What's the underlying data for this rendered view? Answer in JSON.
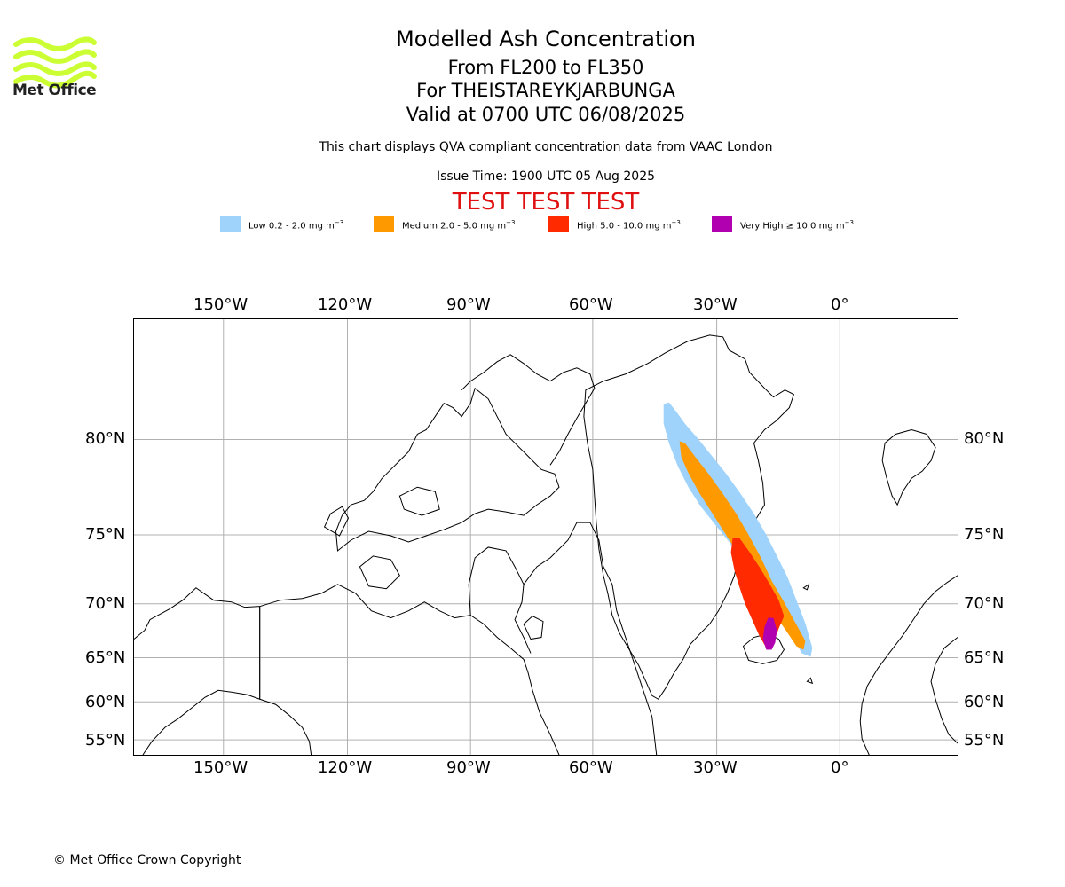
{
  "header": {
    "title": "Modelled Ash Concentration",
    "levels": "From FL200 to FL350",
    "volcano": "For THEISTAREYKJARBUNGA",
    "valid": "Valid at 0700 UTC 06/08/2025",
    "description": "This chart displays QVA compliant concentration data from VAAC London",
    "issue_time": "Issue Time: 1900 UTC 05 Aug 2025",
    "test_banner": "TEST TEST TEST"
  },
  "logo": {
    "text": "Met Office",
    "color": "#ccff33"
  },
  "legend": [
    {
      "label": "Low 0.2 - 2.0 mg m",
      "color": "#9fd3fb"
    },
    {
      "label": "Medium 2.0 - 5.0 mg m",
      "color": "#ff9900"
    },
    {
      "label": "High 5.0 - 10.0 mg m",
      "color": "#ff2a00"
    },
    {
      "label": "Very High  ≥  10.0 mg m",
      "color": "#b000b0"
    }
  ],
  "legend_unit_sup": "−3",
  "map": {
    "lon_ticks": [
      "150°W",
      "120°W",
      "90°W",
      "60°W",
      "30°W",
      "0°"
    ],
    "lat_ticks": [
      "80°N",
      "75°N",
      "70°N",
      "65°N",
      "60°N",
      "55°N"
    ]
  },
  "footer": {
    "copyright": "© Met Office Crown Copyright"
  }
}
